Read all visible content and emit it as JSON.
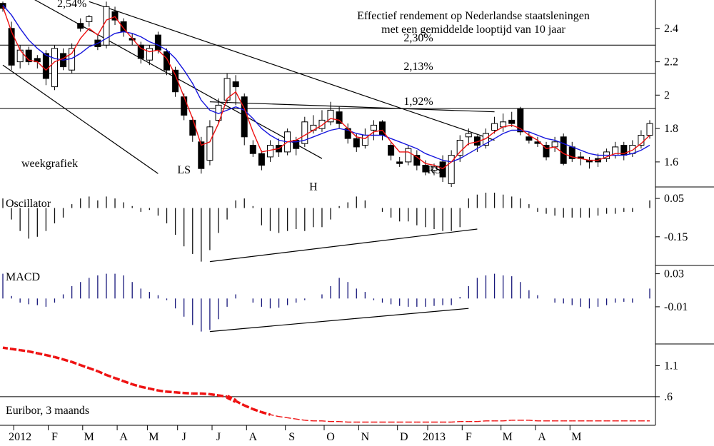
{
  "title_line1": "Effectief rendement op Nederlandse staatsleningen",
  "title_line2": "met een gemiddelde looptijd van 10 jaar",
  "chart_data": [
    {
      "type": "candlestick",
      "panel_label": "weekgrafiek",
      "ylim": [
        1.45,
        2.57
      ],
      "y_ticks": [
        "2.4",
        "2.2",
        "2",
        "1.8",
        "1.6"
      ],
      "levels": [
        {
          "value": 2.3,
          "label": "2,30%"
        },
        {
          "value": 2.13,
          "label": "2,13%"
        },
        {
          "value": 1.92,
          "label": "1,92%"
        }
      ],
      "annotations": [
        {
          "text": "2,54%",
          "x": 8,
          "y": 2.54
        },
        {
          "text": "LS",
          "x": 21,
          "y": 1.54
        },
        {
          "text": "H",
          "x": 36,
          "y": 1.44
        },
        {
          "text": "RS",
          "x": 50,
          "y": 1.54
        }
      ],
      "candles": [
        [
          2.55,
          2.52,
          2.56,
          2.5
        ],
        [
          2.4,
          2.18,
          2.44,
          2.15
        ],
        [
          2.2,
          2.27,
          2.3,
          2.16
        ],
        [
          2.27,
          2.2,
          2.29,
          2.18
        ],
        [
          2.22,
          2.2,
          2.24,
          2.16
        ],
        [
          2.25,
          2.1,
          2.27,
          2.06
        ],
        [
          2.05,
          2.28,
          2.3,
          2.03
        ],
        [
          2.25,
          2.17,
          2.28,
          2.15
        ],
        [
          2.15,
          2.28,
          2.31,
          2.13
        ],
        [
          2.43,
          2.4,
          2.46,
          2.38
        ],
        [
          2.44,
          2.47,
          2.48,
          2.41
        ],
        [
          2.33,
          2.29,
          2.36,
          2.27
        ],
        [
          2.3,
          2.53,
          2.56,
          2.28
        ],
        [
          2.5,
          2.45,
          2.53,
          2.42
        ],
        [
          2.44,
          2.38,
          2.46,
          2.35
        ],
        [
          2.34,
          2.33,
          2.37,
          2.3
        ],
        [
          2.3,
          2.22,
          2.32,
          2.19
        ],
        [
          2.21,
          2.28,
          2.3,
          2.18
        ],
        [
          2.36,
          2.27,
          2.38,
          2.25
        ],
        [
          2.26,
          2.15,
          2.28,
          2.12
        ],
        [
          2.15,
          2.02,
          2.17,
          1.99
        ],
        [
          1.99,
          1.88,
          2.01,
          1.85
        ],
        [
          1.85,
          1.76,
          1.87,
          1.72
        ],
        [
          1.72,
          1.56,
          1.75,
          1.53
        ],
        [
          1.61,
          1.81,
          1.85,
          1.58
        ],
        [
          1.85,
          1.94,
          1.98,
          1.83
        ],
        [
          1.97,
          2.1,
          2.13,
          1.95
        ],
        [
          2.08,
          2.05,
          2.12,
          1.94
        ],
        [
          1.99,
          1.75,
          2.01,
          1.7
        ],
        [
          1.7,
          1.65,
          1.73,
          1.63
        ],
        [
          1.65,
          1.58,
          1.67,
          1.55
        ],
        [
          1.63,
          1.7,
          1.73,
          1.6
        ],
        [
          1.7,
          1.66,
          1.74,
          1.63
        ],
        [
          1.66,
          1.78,
          1.8,
          1.64
        ],
        [
          1.73,
          1.68,
          1.75,
          1.64
        ],
        [
          1.71,
          1.84,
          1.87,
          1.69
        ],
        [
          1.79,
          1.82,
          1.88,
          1.77
        ],
        [
          1.8,
          1.85,
          1.91,
          1.78
        ],
        [
          1.84,
          1.91,
          1.96,
          1.82
        ],
        [
          1.9,
          1.83,
          1.93,
          1.8
        ],
        [
          1.8,
          1.74,
          1.83,
          1.71
        ],
        [
          1.74,
          1.69,
          1.77,
          1.66
        ],
        [
          1.7,
          1.76,
          1.8,
          1.68
        ],
        [
          1.79,
          1.82,
          1.85,
          1.73
        ],
        [
          1.84,
          1.76,
          1.85,
          1.73
        ],
        [
          1.7,
          1.64,
          1.72,
          1.61
        ],
        [
          1.6,
          1.59,
          1.63,
          1.57
        ],
        [
          1.6,
          1.68,
          1.7,
          1.58
        ],
        [
          1.64,
          1.58,
          1.67,
          1.55
        ],
        [
          1.58,
          1.54,
          1.61,
          1.52
        ],
        [
          1.55,
          1.57,
          1.59,
          1.52
        ],
        [
          1.6,
          1.51,
          1.64,
          1.48
        ],
        [
          1.47,
          1.64,
          1.67,
          1.45
        ],
        [
          1.64,
          1.73,
          1.76,
          1.6
        ],
        [
          1.75,
          1.77,
          1.8,
          1.7
        ],
        [
          1.75,
          1.7,
          1.76,
          1.66
        ],
        [
          1.7,
          1.77,
          1.8,
          1.68
        ],
        [
          1.79,
          1.83,
          1.87,
          1.77
        ],
        [
          1.81,
          1.84,
          1.89,
          1.78
        ],
        [
          1.85,
          1.83,
          1.9,
          1.81
        ],
        [
          1.92,
          1.78,
          1.93,
          1.76
        ],
        [
          1.75,
          1.73,
          1.78,
          1.71
        ],
        [
          1.72,
          1.71,
          1.75,
          1.69
        ],
        [
          1.7,
          1.63,
          1.72,
          1.61
        ],
        [
          1.69,
          1.72,
          1.75,
          1.66
        ],
        [
          1.75,
          1.59,
          1.77,
          1.58
        ],
        [
          1.69,
          1.62,
          1.72,
          1.6
        ],
        [
          1.63,
          1.62,
          1.66,
          1.58
        ],
        [
          1.61,
          1.6,
          1.63,
          1.56
        ],
        [
          1.62,
          1.6,
          1.65,
          1.57
        ],
        [
          1.62,
          1.66,
          1.68,
          1.6
        ],
        [
          1.64,
          1.69,
          1.72,
          1.62
        ],
        [
          1.7,
          1.64,
          1.72,
          1.61
        ],
        [
          1.65,
          1.7,
          1.73,
          1.63
        ],
        [
          1.7,
          1.76,
          1.79,
          1.68
        ],
        [
          1.76,
          1.83,
          1.85,
          1.74
        ]
      ],
      "fast_ma": [
        2.53,
        2.38,
        2.27,
        2.21,
        2.2,
        2.15,
        2.2,
        2.22,
        2.25,
        2.34,
        2.4,
        2.36,
        2.45,
        2.47,
        2.4,
        2.34,
        2.28,
        2.26,
        2.27,
        2.22,
        2.12,
        1.99,
        1.86,
        1.7,
        1.72,
        1.83,
        1.98,
        2.02,
        1.92,
        1.78,
        1.66,
        1.67,
        1.68,
        1.72,
        1.73,
        1.76,
        1.79,
        1.82,
        1.86,
        1.85,
        1.8,
        1.75,
        1.74,
        1.78,
        1.79,
        1.72,
        1.66,
        1.66,
        1.63,
        1.59,
        1.58,
        1.56,
        1.6,
        1.66,
        1.71,
        1.72,
        1.74,
        1.78,
        1.81,
        1.82,
        1.8,
        1.76,
        1.73,
        1.68,
        1.69,
        1.65,
        1.63,
        1.62,
        1.61,
        1.61,
        1.63,
        1.65,
        1.65,
        1.67,
        1.71,
        1.76
      ],
      "slow_ma": [
        2.54,
        2.48,
        2.4,
        2.33,
        2.28,
        2.24,
        2.22,
        2.21,
        2.22,
        2.25,
        2.29,
        2.31,
        2.34,
        2.37,
        2.38,
        2.37,
        2.35,
        2.32,
        2.3,
        2.27,
        2.22,
        2.15,
        2.07,
        1.97,
        1.91,
        1.89,
        1.91,
        1.93,
        1.91,
        1.86,
        1.8,
        1.76,
        1.73,
        1.72,
        1.72,
        1.73,
        1.75,
        1.77,
        1.79,
        1.8,
        1.79,
        1.77,
        1.76,
        1.76,
        1.76,
        1.74,
        1.72,
        1.7,
        1.68,
        1.65,
        1.63,
        1.61,
        1.6,
        1.62,
        1.65,
        1.68,
        1.71,
        1.74,
        1.77,
        1.79,
        1.79,
        1.78,
        1.76,
        1.74,
        1.73,
        1.71,
        1.69,
        1.67,
        1.65,
        1.64,
        1.64,
        1.64,
        1.64,
        1.65,
        1.67,
        1.7
      ],
      "trendlines": [
        {
          "from": [
            0,
            2.18
          ],
          "to": [
            18,
            1.53
          ]
        },
        {
          "from": [
            2,
            2.62
          ],
          "to": [
            37,
            1.62
          ]
        },
        {
          "from": [
            10,
            2.56
          ],
          "to": [
            57,
            1.73
          ]
        },
        {
          "from": [
            24,
            1.96
          ],
          "to": [
            57,
            1.9
          ]
        }
      ]
    },
    {
      "type": "bar",
      "panel_label": "Oscillator",
      "ylim": [
        -0.3,
        0.11
      ],
      "y_ticks": [
        "0.05",
        "-0.15"
      ],
      "values": [
        0.05,
        -0.06,
        -0.12,
        -0.16,
        -0.15,
        -0.12,
        -0.08,
        -0.05,
        0.02,
        0.05,
        0.06,
        0.04,
        0.06,
        0.05,
        0.03,
        0.01,
        -0.02,
        -0.01,
        -0.04,
        -0.08,
        -0.14,
        -0.2,
        -0.24,
        -0.28,
        -0.22,
        -0.13,
        -0.06,
        0.04,
        0.05,
        0.01,
        -0.09,
        -0.12,
        -0.13,
        -0.12,
        -0.11,
        -0.12,
        -0.1,
        -0.1,
        -0.06,
        0.01,
        0.03,
        0.06,
        0.04,
        0.0,
        -0.02,
        -0.05,
        -0.07,
        -0.07,
        -0.09,
        -0.1,
        -0.11,
        -0.12,
        -0.12,
        -0.1,
        0.05,
        0.07,
        0.08,
        0.08,
        0.07,
        0.06,
        0.05,
        0.02,
        -0.02,
        -0.03,
        -0.04,
        -0.05,
        -0.05,
        -0.05,
        -0.05,
        -0.04,
        -0.03,
        -0.03,
        -0.02,
        -0.02,
        0.0,
        0.04
      ],
      "trendline": {
        "from": [
          24,
          -0.28
        ],
        "to": [
          55,
          -0.11
        ]
      }
    },
    {
      "type": "bar",
      "panel_label": "MACD",
      "ylim": [
        -0.055,
        0.04
      ],
      "y_ticks": [
        "0.03",
        "-0.01"
      ],
      "values": [
        0.03,
        0.003,
        -0.005,
        -0.007,
        -0.008,
        -0.01,
        -0.005,
        0.005,
        0.015,
        0.02,
        0.025,
        0.028,
        0.03,
        0.03,
        0.028,
        0.02,
        0.012,
        0.008,
        0.004,
        -0.002,
        -0.012,
        -0.022,
        -0.032,
        -0.04,
        -0.038,
        -0.025,
        -0.01,
        0.005,
        0.0,
        -0.005,
        -0.01,
        -0.012,
        -0.011,
        -0.008,
        -0.005,
        -0.002,
        0.0,
        0.005,
        0.015,
        0.025,
        0.02,
        0.012,
        0.008,
        -0.002,
        -0.005,
        -0.007,
        -0.009,
        -0.01,
        -0.01,
        -0.01,
        -0.009,
        -0.008,
        -0.008,
        0.002,
        0.015,
        0.025,
        0.028,
        0.03,
        0.028,
        0.027,
        0.02,
        0.01,
        0.004,
        0.0,
        -0.005,
        -0.006,
        -0.008,
        -0.01,
        -0.012,
        -0.01,
        -0.008,
        -0.005,
        -0.004,
        -0.005,
        0.0,
        0.012
      ],
      "trendline": {
        "from": [
          24,
          -0.04
        ],
        "to": [
          54,
          -0.012
        ]
      }
    },
    {
      "type": "line",
      "panel_label": "Euribor, 3 maands",
      "ylim": [
        0.15,
        1.45
      ],
      "y_ticks": [
        "1.1",
        ".6"
      ],
      "level": 0.6,
      "values": [
        1.39,
        1.37,
        1.35,
        1.33,
        1.3,
        1.27,
        1.24,
        1.2,
        1.16,
        1.11,
        1.06,
        1.01,
        0.95,
        0.9,
        0.85,
        0.8,
        0.76,
        0.73,
        0.7,
        0.68,
        0.67,
        0.66,
        0.65,
        0.65,
        0.64,
        0.62,
        0.6,
        0.53,
        0.46,
        0.4,
        0.35,
        0.31,
        0.28,
        0.26,
        0.24,
        0.22,
        0.21,
        0.21,
        0.2,
        0.2,
        0.19,
        0.19,
        0.19,
        0.19,
        0.19,
        0.19,
        0.19,
        0.19,
        0.19,
        0.19,
        0.19,
        0.19,
        0.19,
        0.2,
        0.2,
        0.2,
        0.21,
        0.21,
        0.21,
        0.22,
        0.22,
        0.22,
        0.21,
        0.21,
        0.21,
        0.21,
        0.21,
        0.21,
        0.21,
        0.21,
        0.21,
        0.21,
        0.21,
        0.21,
        0.21,
        0.21
      ]
    }
  ],
  "x_axis": {
    "labels": [
      "2012",
      "F",
      "M",
      "A",
      "M",
      "J",
      "J",
      "A",
      "S",
      "O",
      "N",
      "D",
      "2013",
      "F",
      "M",
      "A",
      "M"
    ],
    "label_weeks": [
      2,
      6,
      10,
      14,
      17.5,
      21,
      25,
      29,
      33.5,
      38,
      42,
      46.5,
      50,
      54,
      58.5,
      62.5,
      66.5
    ]
  },
  "colors": {
    "candle": "#000000",
    "fast_ma": "#ee1111",
    "slow_ma": "#1515dd",
    "oscillator": "#111111",
    "macd": "#16167a",
    "euribor": "#ee1111",
    "axis": "#000000"
  }
}
